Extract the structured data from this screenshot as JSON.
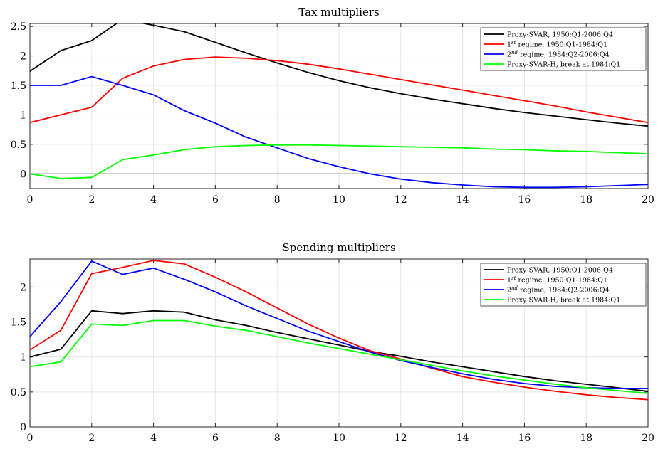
{
  "chart_data": [
    {
      "type": "line",
      "title": "Tax multipliers",
      "xlabel": "",
      "ylabel": "",
      "xlim": [
        0,
        20
      ],
      "ylim": [
        -0.25,
        2.55
      ],
      "xticks": [
        0,
        2,
        4,
        6,
        8,
        10,
        12,
        14,
        16,
        18,
        20
      ],
      "yticks": [
        0,
        0.5,
        1,
        1.5,
        2,
        2.5
      ],
      "yticklabels": [
        "0",
        "0.5",
        "1",
        "1.5",
        "2",
        "2.5"
      ],
      "grid": true,
      "zero_line": true,
      "legend_position": "top-right",
      "x": [
        0,
        1,
        2,
        3,
        4,
        5,
        6,
        7,
        8,
        9,
        10,
        11,
        12,
        13,
        14,
        15,
        16,
        17,
        18,
        19,
        20
      ],
      "series": [
        {
          "legend_parts": [
            "Proxy-SVAR, 1950:Q1-2006:Q4"
          ],
          "color": "#000000",
          "values": [
            1.74,
            2.09,
            2.26,
            2.62,
            2.52,
            2.41,
            2.23,
            2.05,
            1.88,
            1.72,
            1.58,
            1.46,
            1.36,
            1.27,
            1.19,
            1.11,
            1.04,
            0.98,
            0.92,
            0.86,
            0.81
          ]
        },
        {
          "legend_parts": [
            "1",
            "st",
            " regime, 1950:Q1-1984:Q1"
          ],
          "color": "#ff0000",
          "values": [
            0.87,
            1.0,
            1.13,
            1.62,
            1.83,
            1.94,
            1.98,
            1.96,
            1.92,
            1.86,
            1.78,
            1.69,
            1.6,
            1.51,
            1.42,
            1.33,
            1.24,
            1.15,
            1.05,
            0.96,
            0.87
          ]
        },
        {
          "legend_parts": [
            "2",
            "nd",
            " regime, 1984:Q2-2006:Q4"
          ],
          "color": "#0000ff",
          "values": [
            1.5,
            1.5,
            1.65,
            1.5,
            1.34,
            1.07,
            0.86,
            0.62,
            0.44,
            0.26,
            0.12,
            0.0,
            -0.09,
            -0.15,
            -0.19,
            -0.22,
            -0.23,
            -0.23,
            -0.22,
            -0.2,
            -0.18
          ]
        },
        {
          "legend_parts": [
            "Proxy-SVAR-H, break at 1984:Q1"
          ],
          "color": "#00ff00",
          "values": [
            0.0,
            -0.08,
            -0.06,
            0.24,
            0.32,
            0.41,
            0.46,
            0.48,
            0.49,
            0.49,
            0.48,
            0.47,
            0.46,
            0.45,
            0.44,
            0.42,
            0.41,
            0.39,
            0.38,
            0.36,
            0.34
          ]
        }
      ]
    },
    {
      "type": "line",
      "title": "Spending multipliers",
      "xlabel": "",
      "ylabel": "",
      "xlim": [
        0,
        20
      ],
      "ylim": [
        0,
        2.4
      ],
      "xticks": [
        0,
        2,
        4,
        6,
        8,
        10,
        12,
        14,
        16,
        18,
        20
      ],
      "yticks": [
        0,
        0.5,
        1,
        1.5,
        2
      ],
      "yticklabels": [
        "0",
        "0.5",
        "1",
        "1.5",
        "2"
      ],
      "grid": true,
      "zero_line": false,
      "legend_position": "top-right",
      "x": [
        0,
        1,
        2,
        3,
        4,
        5,
        6,
        7,
        8,
        9,
        10,
        11,
        12,
        13,
        14,
        15,
        16,
        17,
        18,
        19,
        20
      ],
      "series": [
        {
          "legend_parts": [
            "Proxy-SVAR, 1950:Q1-2006:Q4"
          ],
          "color": "#000000",
          "values": [
            1.0,
            1.11,
            1.66,
            1.62,
            1.66,
            1.64,
            1.53,
            1.45,
            1.35,
            1.26,
            1.17,
            1.08,
            1.01,
            0.93,
            0.86,
            0.79,
            0.72,
            0.66,
            0.61,
            0.56,
            0.51
          ]
        },
        {
          "legend_parts": [
            "1",
            "st",
            " regime, 1950:Q1-1984:Q1"
          ],
          "color": "#ff0000",
          "values": [
            1.1,
            1.38,
            2.19,
            2.28,
            2.38,
            2.33,
            2.14,
            1.93,
            1.7,
            1.47,
            1.27,
            1.09,
            0.97,
            0.84,
            0.72,
            0.64,
            0.57,
            0.51,
            0.46,
            0.42,
            0.39
          ]
        },
        {
          "legend_parts": [
            "2",
            "nd",
            " regime, 1984:Q2-2006:Q4"
          ],
          "color": "#0000ff",
          "values": [
            1.29,
            1.79,
            2.37,
            2.18,
            2.27,
            2.11,
            1.93,
            1.73,
            1.55,
            1.37,
            1.22,
            1.07,
            0.95,
            0.85,
            0.76,
            0.68,
            0.62,
            0.58,
            0.56,
            0.55,
            0.55
          ]
        },
        {
          "legend_parts": [
            "Proxy-SVAR-H, break at 1984:Q1"
          ],
          "color": "#00ff00",
          "values": [
            0.86,
            0.93,
            1.47,
            1.45,
            1.52,
            1.52,
            1.44,
            1.38,
            1.29,
            1.2,
            1.12,
            1.04,
            0.96,
            0.88,
            0.8,
            0.73,
            0.67,
            0.61,
            0.56,
            0.52,
            0.48
          ]
        }
      ]
    }
  ]
}
